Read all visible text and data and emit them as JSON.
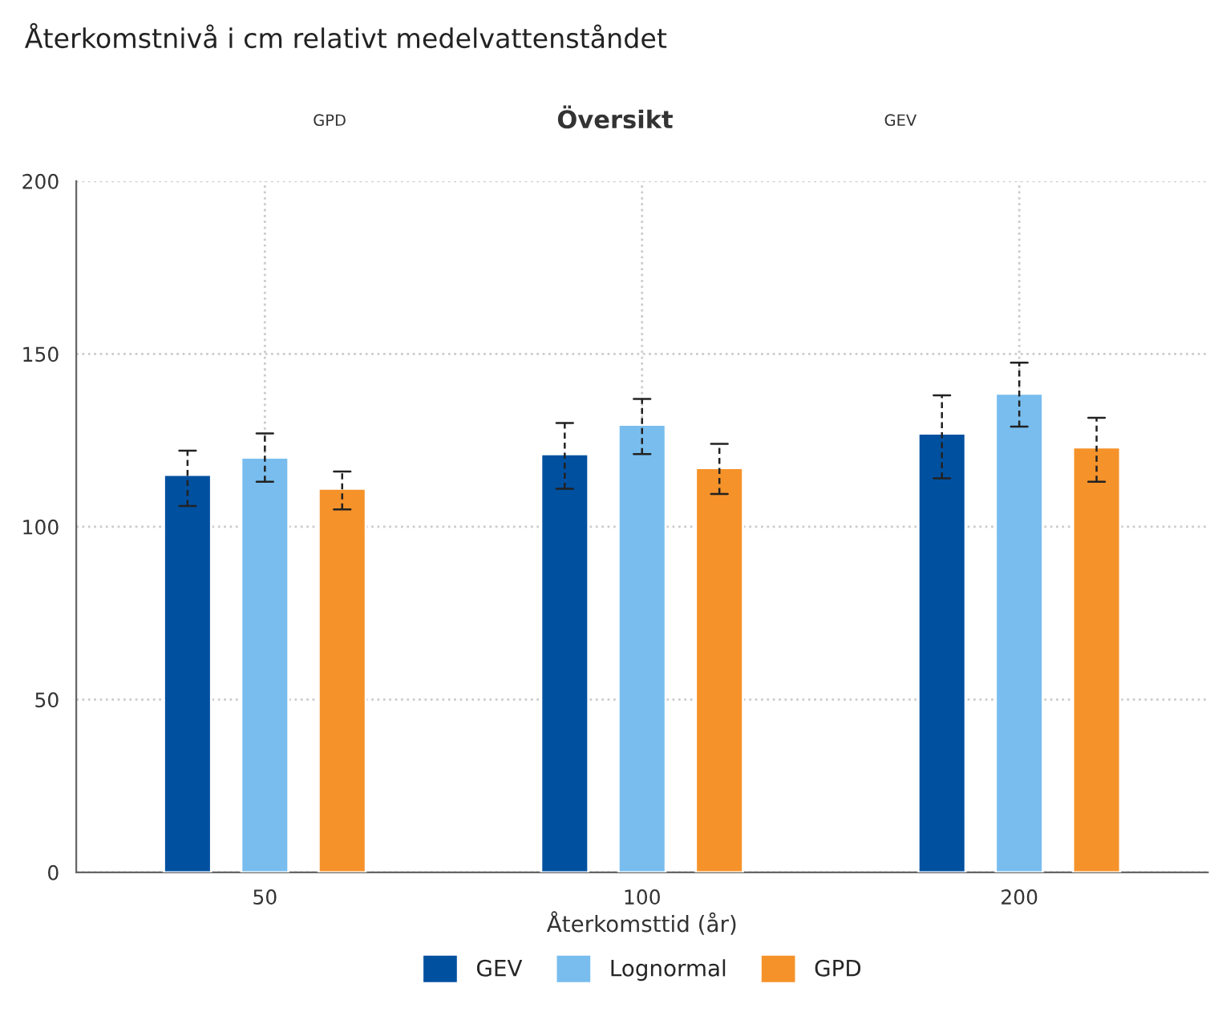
{
  "chart_data": {
    "type": "bar",
    "title": "Återkomstnivå i cm relativt medelvattenståndet",
    "annotations": [
      "GPD",
      "Översikt",
      "GEV"
    ],
    "xlabel": "Återkomsttid (år)",
    "categories": [
      "50",
      "100",
      "200"
    ],
    "series": [
      {
        "name": "GEV",
        "color": "#0050a0",
        "values": [
          115,
          121,
          127
        ],
        "errors": [
          [
            106,
            122
          ],
          [
            111,
            130
          ],
          [
            114,
            138
          ]
        ]
      },
      {
        "name": "Lognormal",
        "color": "#78bdee",
        "values": [
          120,
          129.5,
          138.5
        ],
        "errors": [
          [
            113,
            127
          ],
          [
            121,
            137
          ],
          [
            129,
            147.5
          ]
        ]
      },
      {
        "name": "GPD",
        "color": "#f5922a",
        "values": [
          111,
          117,
          123
        ],
        "errors": [
          [
            105,
            116
          ],
          [
            109.5,
            124
          ],
          [
            113,
            131.5
          ]
        ]
      }
    ],
    "ylim": [
      0,
      200
    ],
    "yticks": [
      0,
      50,
      100,
      150,
      200
    ],
    "grid": true,
    "legend": "bottom",
    "line_style": "dashed"
  }
}
